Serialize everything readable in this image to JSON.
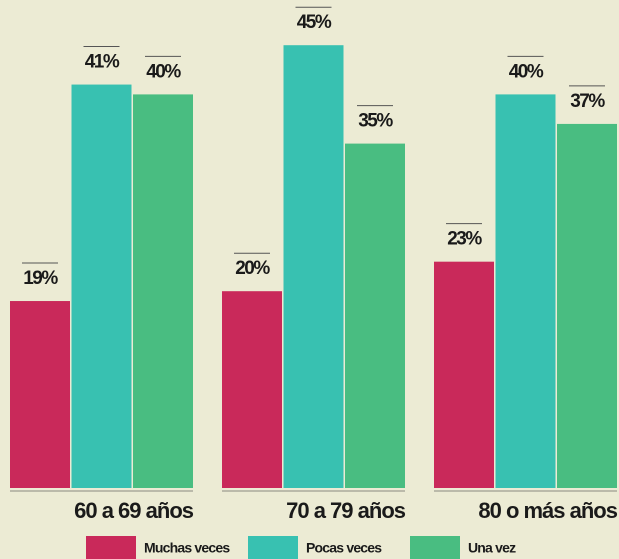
{
  "chart_data": {
    "type": "bar",
    "categories": [
      "60 a 69 años",
      "70 a 79 años",
      "80 o más años"
    ],
    "series": [
      {
        "name": "Muchas veces",
        "color": "#c9295a",
        "values": [
          19,
          20,
          23
        ],
        "value_labels": [
          "19%",
          "20%",
          "23%"
        ]
      },
      {
        "name": "Pocas veces",
        "color": "#38c1b1",
        "values": [
          41,
          45,
          40
        ],
        "value_labels": [
          "41%",
          "45%",
          "40%"
        ]
      },
      {
        "name": "Una vez",
        "color": "#49bd81",
        "values": [
          40,
          35,
          37
        ],
        "value_labels": [
          "40%",
          "35%",
          "37%"
        ]
      }
    ]
  }
}
